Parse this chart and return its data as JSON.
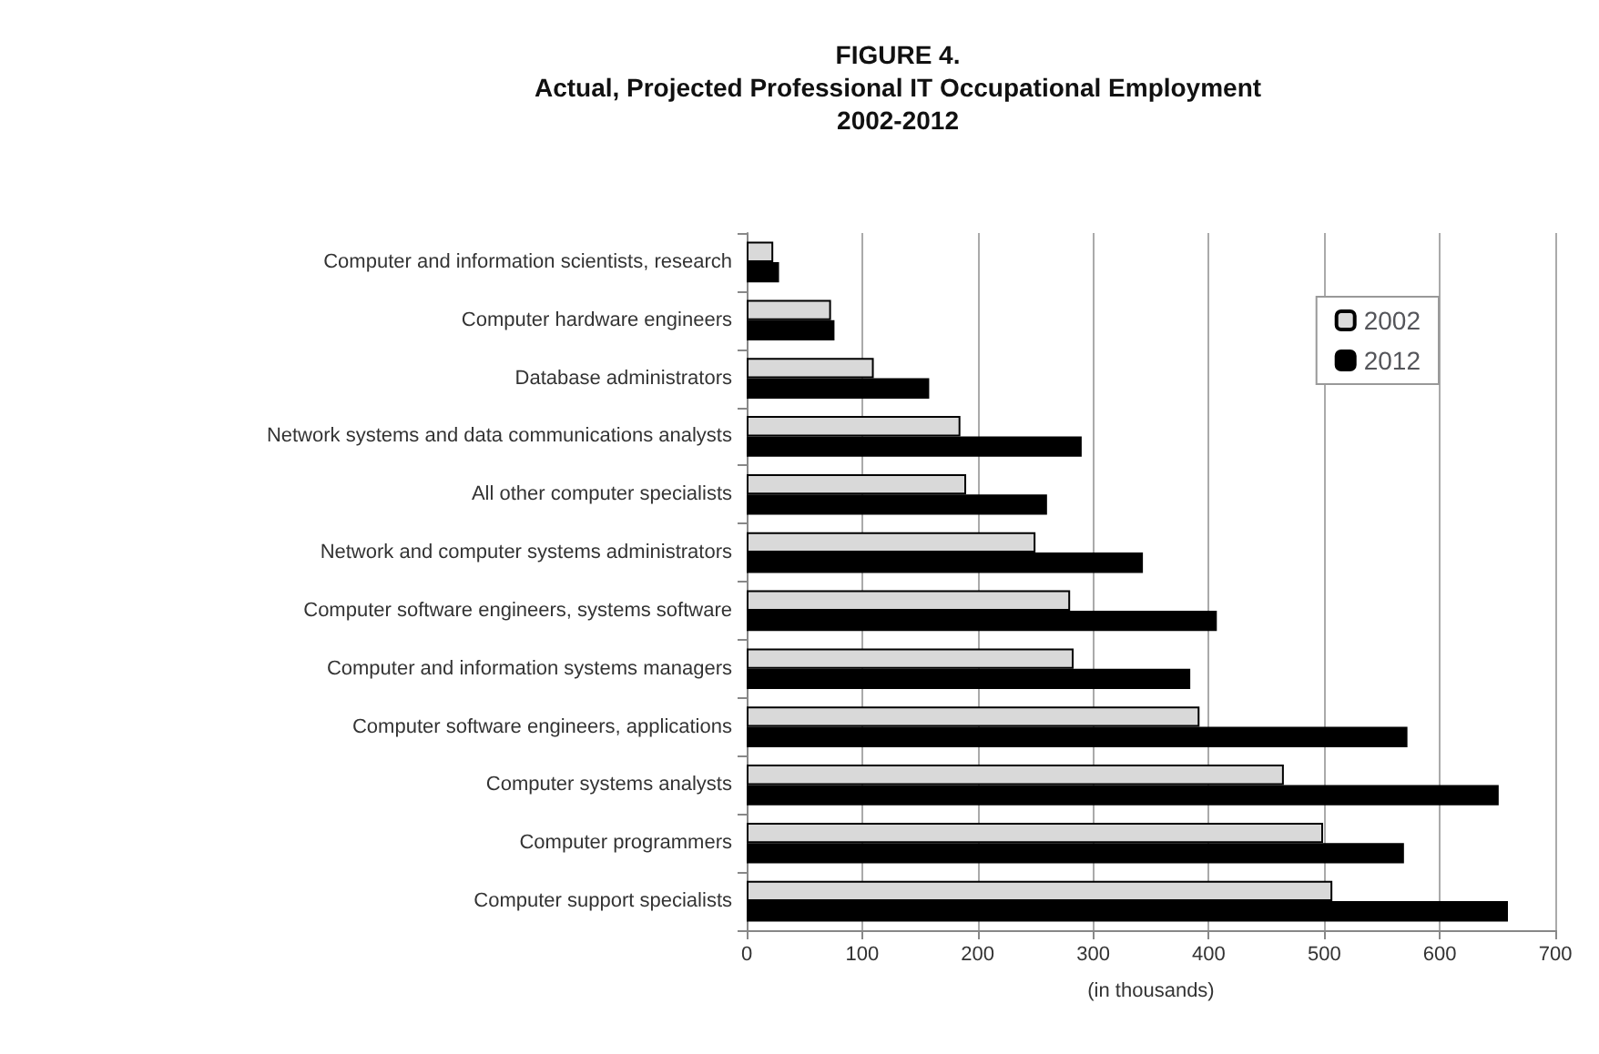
{
  "chart_data": {
    "type": "bar",
    "orientation": "horizontal",
    "title": "FIGURE 4.\nActual, Projected Professional IT Occupational Employment\n2002-2012",
    "xlabel": "(in thousands)",
    "categories": [
      "Computer and information scientists, research",
      "Computer hardware engineers",
      "Database administrators",
      "Network systems and data communications analysts",
      "All other computer specialists",
      "Network and computer systems administrators",
      "Computer software engineers, systems software",
      "Computer and information systems managers",
      "Computer software engineers, applications",
      "Computer systems analysts",
      "Computer programmers",
      "Computer support specialists"
    ],
    "series": [
      {
        "name": "2002",
        "color": "#d9d9d9",
        "values": [
          23,
          73,
          110,
          185,
          190,
          250,
          280,
          283,
          392,
          465,
          499,
          507
        ]
      },
      {
        "name": "2012",
        "color": "#000000",
        "values": [
          28,
          76,
          158,
          290,
          260,
          343,
          407,
          384,
          572,
          651,
          569,
          659
        ]
      }
    ],
    "xlim": [
      0,
      700
    ],
    "xticks": [
      0,
      100,
      200,
      300,
      400,
      500,
      600,
      700
    ],
    "grid": "x",
    "legend": "top right"
  }
}
